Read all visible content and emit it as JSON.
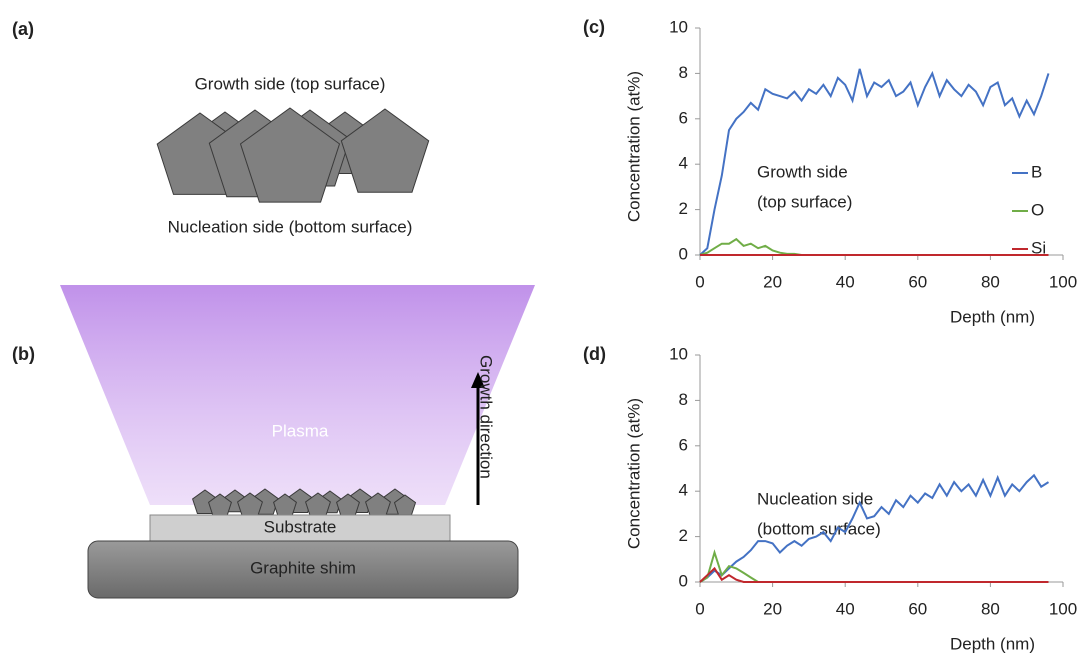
{
  "diagram_a": {
    "panel_label": "(a)",
    "top_label": "Growth side (top surface)",
    "bottom_label": "Nucleation side (bottom surface)"
  },
  "diagram_b": {
    "panel_label": "(b)",
    "plasma_label": "Plasma",
    "arrow_label": "Growth direction",
    "substrate_label": "Substrate",
    "shim_label": "Graphite shim"
  },
  "chart_data": [
    {
      "type": "line",
      "panel_label": "(c)",
      "x_label": "Depth (nm)",
      "y_label": "Concentration (at%)",
      "annotation": [
        "Growth side",
        "(top surface)"
      ],
      "legend": "right",
      "xlim": [
        0,
        100
      ],
      "ylim": [
        0,
        10
      ],
      "xticks": [
        0,
        20,
        40,
        60,
        80,
        100
      ],
      "yticks": [
        0,
        2,
        4,
        6,
        8,
        10
      ],
      "x": [
        0,
        2,
        4,
        6,
        8,
        10,
        12,
        14,
        16,
        18,
        20,
        22,
        24,
        26,
        28,
        30,
        32,
        34,
        36,
        38,
        40,
        42,
        44,
        46,
        48,
        50,
        52,
        54,
        56,
        58,
        60,
        62,
        64,
        66,
        68,
        70,
        72,
        74,
        76,
        78,
        80,
        82,
        84,
        86,
        88,
        90,
        92,
        94,
        96
      ],
      "series": [
        {
          "name": "B",
          "color": "#4472c4",
          "values": [
            0,
            0.3,
            2,
            3.5,
            5.5,
            6,
            6.3,
            6.7,
            6.4,
            7.3,
            7.1,
            7,
            6.9,
            7.2,
            6.8,
            7.3,
            7.1,
            7.5,
            7,
            7.8,
            7.5,
            6.8,
            8.2,
            7,
            7.6,
            7.4,
            7.7,
            7,
            7.2,
            7.6,
            6.6,
            7.4,
            8,
            7,
            7.7,
            7.3,
            7,
            7.5,
            7.2,
            6.6,
            7.4,
            7.6,
            6.6,
            6.9,
            6.1,
            6.8,
            6.2,
            7,
            8
          ]
        },
        {
          "name": "O",
          "color": "#70ad47",
          "values": [
            0,
            0.1,
            0.3,
            0.5,
            0.5,
            0.7,
            0.4,
            0.5,
            0.3,
            0.4,
            0.2,
            0.1,
            0.05,
            0.05,
            0,
            0,
            0,
            0,
            0,
            0,
            0,
            0,
            0,
            0,
            0,
            0,
            0,
            0,
            0,
            0,
            0,
            0,
            0,
            0,
            0,
            0,
            0,
            0,
            0,
            0,
            0,
            0,
            0,
            0,
            0,
            0,
            0,
            0,
            0
          ]
        },
        {
          "name": "Si",
          "color": "#c0282d",
          "values": [
            0,
            0,
            0,
            0,
            0,
            0,
            0,
            0,
            0,
            0,
            0,
            0,
            0,
            0,
            0,
            0,
            0,
            0,
            0,
            0,
            0,
            0,
            0,
            0,
            0,
            0,
            0,
            0,
            0,
            0,
            0,
            0,
            0,
            0,
            0,
            0,
            0,
            0,
            0,
            0,
            0,
            0,
            0,
            0,
            0,
            0,
            0,
            0,
            0
          ]
        }
      ]
    },
    {
      "type": "line",
      "panel_label": "(d)",
      "x_label": "Depth (nm)",
      "y_label": "Concentration (at%)",
      "annotation": [
        "Nucleation side",
        "(bottom surface)"
      ],
      "xlim": [
        0,
        100
      ],
      "ylim": [
        0,
        10
      ],
      "xticks": [
        0,
        20,
        40,
        60,
        80,
        100
      ],
      "yticks": [
        0,
        2,
        4,
        6,
        8,
        10
      ],
      "x": [
        0,
        2,
        4,
        6,
        8,
        10,
        12,
        14,
        16,
        18,
        20,
        22,
        24,
        26,
        28,
        30,
        32,
        34,
        36,
        38,
        40,
        42,
        44,
        46,
        48,
        50,
        52,
        54,
        56,
        58,
        60,
        62,
        64,
        66,
        68,
        70,
        72,
        74,
        76,
        78,
        80,
        82,
        84,
        86,
        88,
        90,
        92,
        94,
        96
      ],
      "series": [
        {
          "color": "#4472c4",
          "values": [
            0,
            0.2,
            0.5,
            0.3,
            0.6,
            0.9,
            1.1,
            1.4,
            1.8,
            1.8,
            1.7,
            1.3,
            1.6,
            1.8,
            1.6,
            1.9,
            2,
            2.2,
            1.8,
            2.4,
            2.2,
            2.8,
            3.5,
            2.8,
            2.9,
            3.3,
            3,
            3.6,
            3.3,
            3.8,
            3.5,
            3.9,
            3.7,
            4.3,
            3.8,
            4.4,
            4,
            4.3,
            3.8,
            4.5,
            3.8,
            4.6,
            3.8,
            4.3,
            4,
            4.4,
            4.7,
            4.2,
            4.4
          ]
        },
        {
          "color": "#70ad47",
          "values": [
            0,
            0.2,
            1.3,
            0.3,
            0.7,
            0.6,
            0.4,
            0.2,
            0,
            0,
            0,
            0,
            0,
            0,
            0,
            0,
            0,
            0,
            0,
            0,
            0,
            0,
            0,
            0,
            0,
            0,
            0,
            0,
            0,
            0,
            0,
            0,
            0,
            0,
            0,
            0,
            0,
            0,
            0,
            0,
            0,
            0,
            0,
            0,
            0,
            0,
            0,
            0,
            0
          ]
        },
        {
          "color": "#c0282d",
          "values": [
            0,
            0.3,
            0.6,
            0.1,
            0.3,
            0.1,
            0,
            0,
            0,
            0,
            0,
            0,
            0,
            0,
            0,
            0,
            0,
            0,
            0,
            0,
            0,
            0,
            0,
            0,
            0,
            0,
            0,
            0,
            0,
            0,
            0,
            0,
            0,
            0,
            0,
            0,
            0,
            0,
            0,
            0,
            0,
            0,
            0,
            0,
            0,
            0,
            0,
            0,
            0
          ]
        }
      ]
    }
  ]
}
